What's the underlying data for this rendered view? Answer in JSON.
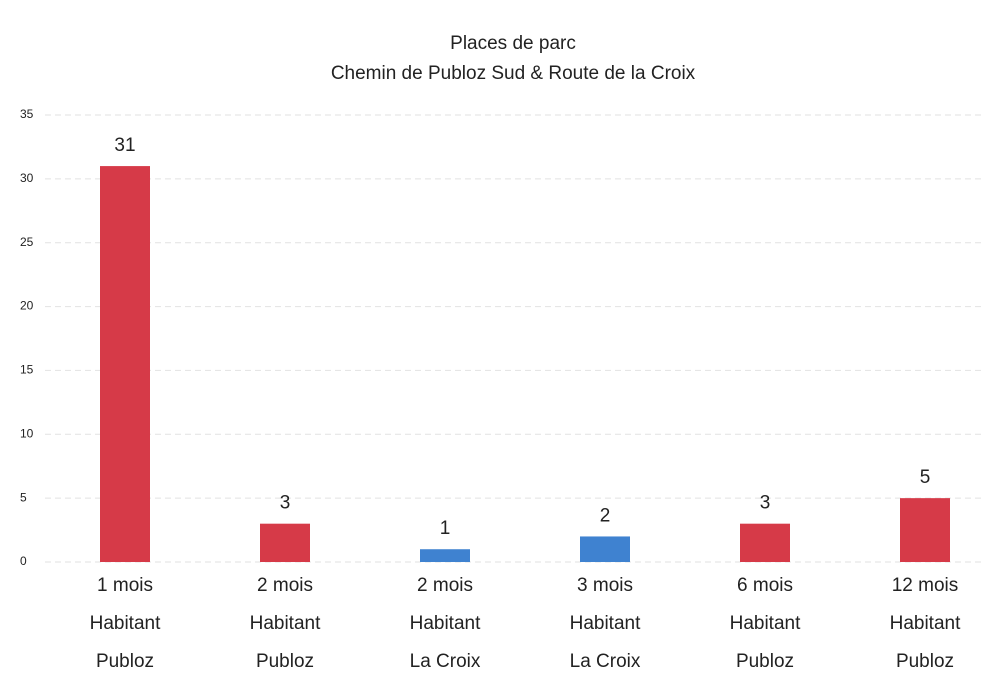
{
  "chart_data": {
    "type": "bar",
    "title": "Places de parc",
    "subtitle": "Chemin de Publoz Sud & Route de la Croix",
    "categories": [
      [
        "1 mois",
        "Habitant",
        "Publoz"
      ],
      [
        "2 mois",
        "Habitant",
        "Publoz"
      ],
      [
        "2 mois",
        "Habitant",
        "La Croix"
      ],
      [
        "3 mois",
        "Habitant",
        "La Croix"
      ],
      [
        "6 mois",
        "Habitant",
        "Publoz"
      ],
      [
        "12 mois",
        "Habitant",
        "Publoz"
      ]
    ],
    "values": [
      31,
      3,
      1,
      2,
      3,
      5
    ],
    "colors": [
      "#d63a48",
      "#d63a48",
      "#3f82d0",
      "#3f82d0",
      "#d63a48",
      "#d63a48"
    ],
    "ylim": [
      0,
      35
    ],
    "yticks": [
      0,
      5,
      10,
      15,
      20,
      25,
      30,
      35
    ],
    "grid": true
  }
}
